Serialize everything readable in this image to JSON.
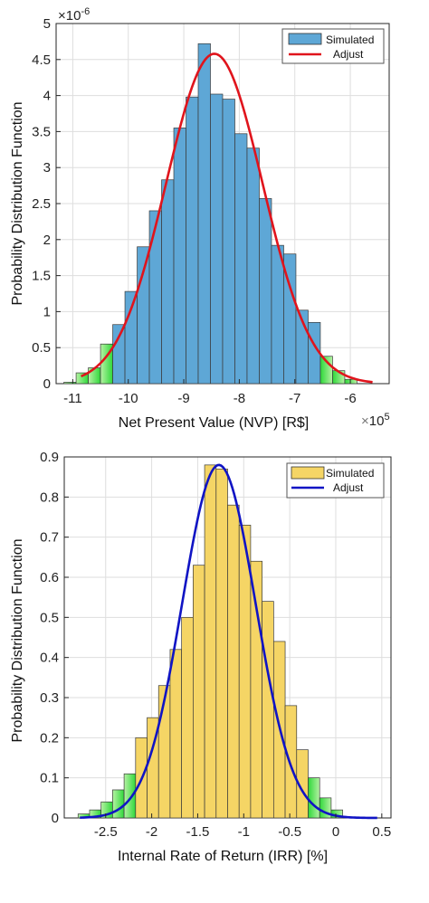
{
  "chart_data": [
    {
      "type": "bar",
      "xlabel": "Net Present Value (NVP) [R$]",
      "ylabel": "Probability Distribution Function",
      "x_multiplier": "x10^5",
      "x_multiplier_base": "10",
      "x_multiplier_exp": "5",
      "y_multiplier": "x10^-6",
      "y_multiplier_base": "10",
      "y_multiplier_exp": "-6",
      "xlim": [
        -11.3,
        -5.3
      ],
      "ylim": [
        0,
        5
      ],
      "xticks": [
        -11,
        -10,
        -9,
        -8,
        -7,
        -6
      ],
      "yticks": [
        0,
        0.5,
        1,
        1.5,
        2,
        2.5,
        3,
        3.5,
        4,
        4.5,
        5
      ],
      "grid": true,
      "legend_position": "top-right",
      "bin_width": 0.22,
      "bins": [
        {
          "x": -11.05,
          "y": 0.02,
          "tail": true
        },
        {
          "x": -10.83,
          "y": 0.15,
          "tail": true
        },
        {
          "x": -10.61,
          "y": 0.22,
          "tail": true
        },
        {
          "x": -10.39,
          "y": 0.55,
          "tail": true
        },
        {
          "x": -10.17,
          "y": 0.82,
          "tail": false
        },
        {
          "x": -9.95,
          "y": 1.28,
          "tail": false
        },
        {
          "x": -9.73,
          "y": 1.9,
          "tail": false
        },
        {
          "x": -9.51,
          "y": 2.4,
          "tail": false
        },
        {
          "x": -9.29,
          "y": 2.83,
          "tail": false
        },
        {
          "x": -9.07,
          "y": 3.55,
          "tail": false
        },
        {
          "x": -8.85,
          "y": 3.98,
          "tail": false
        },
        {
          "x": -8.63,
          "y": 4.72,
          "tail": false
        },
        {
          "x": -8.41,
          "y": 4.02,
          "tail": false
        },
        {
          "x": -8.19,
          "y": 3.95,
          "tail": false
        },
        {
          "x": -7.97,
          "y": 3.47,
          "tail": false
        },
        {
          "x": -7.75,
          "y": 3.27,
          "tail": false
        },
        {
          "x": -7.53,
          "y": 2.57,
          "tail": false
        },
        {
          "x": -7.31,
          "y": 1.92,
          "tail": false
        },
        {
          "x": -7.09,
          "y": 1.8,
          "tail": false
        },
        {
          "x": -6.87,
          "y": 1.02,
          "tail": false
        },
        {
          "x": -6.65,
          "y": 0.85,
          "tail": false
        },
        {
          "x": -6.43,
          "y": 0.38,
          "tail": true
        },
        {
          "x": -6.21,
          "y": 0.18,
          "tail": true
        },
        {
          "x": -5.99,
          "y": 0.06,
          "tail": true
        }
      ],
      "fit": {
        "mean": -8.45,
        "std": 0.87,
        "peak": 4.58,
        "x_start": -10.85,
        "x_end": -5.6
      },
      "legend": [
        {
          "label": "Simulated",
          "kind": "patch"
        },
        {
          "label": "Adjust",
          "kind": "line"
        }
      ],
      "colors": {
        "bar": "#5ea7d6",
        "tail": "#47e53c",
        "fit": "#e0141c",
        "tail_gradient_light": "#b6f2a4"
      }
    },
    {
      "type": "bar",
      "xlabel": "Internal Rate of Return (IRR) [%]",
      "ylabel": "Probability Distribution Function",
      "xlim": [
        -2.95,
        0.6
      ],
      "ylim": [
        0,
        0.9
      ],
      "xticks": [
        -2.5,
        -2,
        -1.5,
        -1,
        -0.5,
        0,
        0.5
      ],
      "xtick_labels": [
        "-2.5",
        "-2",
        "-1.5",
        "-1",
        "-0.5",
        "0",
        "0.5"
      ],
      "yticks": [
        0,
        0.1,
        0.2,
        0.3,
        0.4,
        0.5,
        0.6,
        0.7,
        0.8,
        0.9
      ],
      "grid": true,
      "legend_position": "top-right",
      "bin_width": 0.125,
      "bins": [
        {
          "x": -2.7375,
          "y": 0.01,
          "tail": true
        },
        {
          "x": -2.6125,
          "y": 0.02,
          "tail": true
        },
        {
          "x": -2.4875,
          "y": 0.04,
          "tail": true
        },
        {
          "x": -2.3625,
          "y": 0.07,
          "tail": true
        },
        {
          "x": -2.2375,
          "y": 0.11,
          "tail": true
        },
        {
          "x": -2.1125,
          "y": 0.2,
          "tail": false
        },
        {
          "x": -1.9875,
          "y": 0.25,
          "tail": false
        },
        {
          "x": -1.8625,
          "y": 0.33,
          "tail": false
        },
        {
          "x": -1.7375,
          "y": 0.42,
          "tail": false
        },
        {
          "x": -1.6125,
          "y": 0.5,
          "tail": false
        },
        {
          "x": -1.4875,
          "y": 0.63,
          "tail": false
        },
        {
          "x": -1.3625,
          "y": 0.88,
          "tail": false
        },
        {
          "x": -1.2375,
          "y": 0.87,
          "tail": false
        },
        {
          "x": -1.1125,
          "y": 0.78,
          "tail": false
        },
        {
          "x": -0.9875,
          "y": 0.73,
          "tail": false
        },
        {
          "x": -0.8625,
          "y": 0.64,
          "tail": false
        },
        {
          "x": -0.7375,
          "y": 0.54,
          "tail": false
        },
        {
          "x": -0.6125,
          "y": 0.44,
          "tail": false
        },
        {
          "x": -0.4875,
          "y": 0.28,
          "tail": false
        },
        {
          "x": -0.3625,
          "y": 0.17,
          "tail": false
        },
        {
          "x": -0.2375,
          "y": 0.1,
          "tail": true
        },
        {
          "x": -0.1125,
          "y": 0.05,
          "tail": true
        },
        {
          "x": 0.0125,
          "y": 0.02,
          "tail": true
        }
      ],
      "fit": {
        "mean": -1.27,
        "std": 0.4,
        "peak": 0.88,
        "x_start": -2.78,
        "x_end": 0.45
      },
      "legend": [
        {
          "label": "Simulated",
          "kind": "patch"
        },
        {
          "label": "Adjust",
          "kind": "line"
        }
      ],
      "colors": {
        "bar": "#f5d565",
        "tail": "#47e53c",
        "fit": "#1014c4",
        "tail_gradient_light": "#b6f2a4"
      }
    }
  ]
}
